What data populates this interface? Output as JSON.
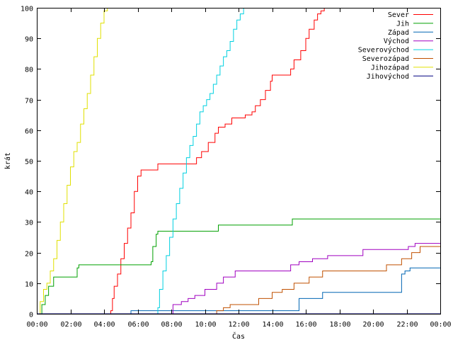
{
  "chart_data": {
    "type": "line",
    "xlabel": "Čas",
    "ylabel": "krát",
    "xlim": [
      0,
      24
    ],
    "ylim": [
      0,
      100
    ],
    "x_tick_values": [
      0,
      2,
      4,
      6,
      8,
      10,
      12,
      14,
      16,
      18,
      20,
      22,
      24
    ],
    "x_tick_labels": [
      "00:00",
      "02:00",
      "04:00",
      "06:00",
      "08:00",
      "10:00",
      "12:00",
      "14:00",
      "16:00",
      "18:00",
      "20:00",
      "22:00",
      "00:00"
    ],
    "y_ticks": [
      0,
      10,
      20,
      30,
      40,
      50,
      60,
      70,
      80,
      90,
      100
    ],
    "grid": false,
    "legend_position": "top-right",
    "series": [
      {
        "name": "Sever",
        "color": "#ff0000",
        "step": true,
        "x": [
          0,
          4.4,
          4.5,
          4.6,
          4.8,
          5.0,
          5.2,
          5.4,
          5.6,
          5.8,
          6.0,
          6.2,
          6.4,
          6.6,
          6.8,
          7.2,
          9.3,
          9.5,
          9.8,
          10.2,
          10.6,
          10.8,
          11.2,
          11.6,
          12.4,
          12.8,
          13.0,
          13.3,
          13.6,
          13.9,
          14.0,
          14.4,
          14.6,
          15.1,
          15.3,
          15.7,
          16.0,
          16.2,
          16.5,
          16.7,
          16.9,
          17.1,
          24
        ],
        "y": [
          0,
          1,
          5,
          9,
          13,
          18,
          23,
          28,
          33,
          40,
          45,
          47,
          47,
          47,
          47,
          49,
          49,
          51,
          53,
          56,
          59,
          61,
          62,
          64,
          65,
          66,
          68,
          70,
          73,
          76,
          78,
          78,
          78,
          80,
          83,
          86,
          90,
          93,
          96,
          98,
          99,
          100,
          100
        ]
      },
      {
        "name": "Jih",
        "color": "#00a000",
        "step": true,
        "x": [
          0,
          0.3,
          0.5,
          0.7,
          1.0,
          1.2,
          2.4,
          2.5,
          2.6,
          6.8,
          6.9,
          7.1,
          7.2,
          10.8,
          15.2,
          24
        ],
        "y": [
          0,
          3,
          6,
          9,
          12,
          12,
          15,
          16,
          16,
          17,
          22,
          26,
          27,
          29,
          31,
          31
        ]
      },
      {
        "name": "Západ",
        "color": "#0066b3",
        "step": true,
        "x": [
          0,
          5.6,
          15.6,
          17.0,
          21.7,
          21.9,
          22.2,
          24
        ],
        "y": [
          0,
          1,
          5,
          7,
          13,
          14,
          15,
          15
        ]
      },
      {
        "name": "Východ",
        "color": "#a000c0",
        "step": true,
        "x": [
          0,
          8.1,
          8.6,
          9.0,
          9.4,
          10.0,
          10.7,
          11.1,
          11.8,
          12.8,
          13.2,
          15.1,
          15.6,
          16.4,
          17.3,
          19.4,
          22.1,
          22.5,
          24
        ],
        "y": [
          0,
          3,
          4,
          5,
          6,
          8,
          10,
          12,
          14,
          14,
          14,
          16,
          17,
          18,
          19,
          21,
          22,
          23,
          23
        ]
      },
      {
        "name": "Severovýchod",
        "color": "#00d0e0",
        "step": true,
        "x": [
          0,
          7.2,
          7.3,
          7.5,
          7.7,
          7.9,
          8.1,
          8.3,
          8.5,
          8.7,
          8.9,
          9.1,
          9.3,
          9.5,
          9.7,
          9.9,
          10.1,
          10.3,
          10.5,
          10.7,
          10.9,
          11.1,
          11.3,
          11.5,
          11.7,
          11.9,
          12.1,
          12.3,
          12.6,
          24
        ],
        "y": [
          0,
          2,
          8,
          14,
          19,
          25,
          31,
          36,
          41,
          46,
          51,
          55,
          58,
          62,
          66,
          68,
          70,
          72,
          75,
          78,
          81,
          84,
          86,
          89,
          93,
          96,
          98,
          100,
          100,
          100
        ]
      },
      {
        "name": "Severozápad",
        "color": "#c05000",
        "step": true,
        "x": [
          0,
          10.7,
          11.1,
          11.5,
          13.2,
          14.0,
          14.6,
          15.3,
          16.2,
          17.0,
          19.3,
          20.8,
          21.7,
          22.3,
          22.8,
          24
        ],
        "y": [
          0,
          1,
          2,
          3,
          5,
          7,
          8,
          10,
          12,
          14,
          14,
          16,
          18,
          20,
          22,
          22
        ]
      },
      {
        "name": "Jihozápad",
        "color": "#e0e000",
        "step": true,
        "x": [
          0,
          0.2,
          0.4,
          0.6,
          0.8,
          1.0,
          1.2,
          1.4,
          1.6,
          1.8,
          2.0,
          2.2,
          2.4,
          2.6,
          2.8,
          3.0,
          3.2,
          3.4,
          3.6,
          3.8,
          4.0,
          4.2,
          24
        ],
        "y": [
          0,
          4,
          8,
          10,
          14,
          18,
          24,
          30,
          36,
          42,
          48,
          53,
          56,
          62,
          67,
          72,
          78,
          84,
          90,
          95,
          99,
          100,
          100
        ]
      },
      {
        "name": "Jihovýchod",
        "color": "#000080",
        "step": true,
        "x": [
          0,
          24
        ],
        "y": [
          0,
          0
        ]
      }
    ]
  }
}
